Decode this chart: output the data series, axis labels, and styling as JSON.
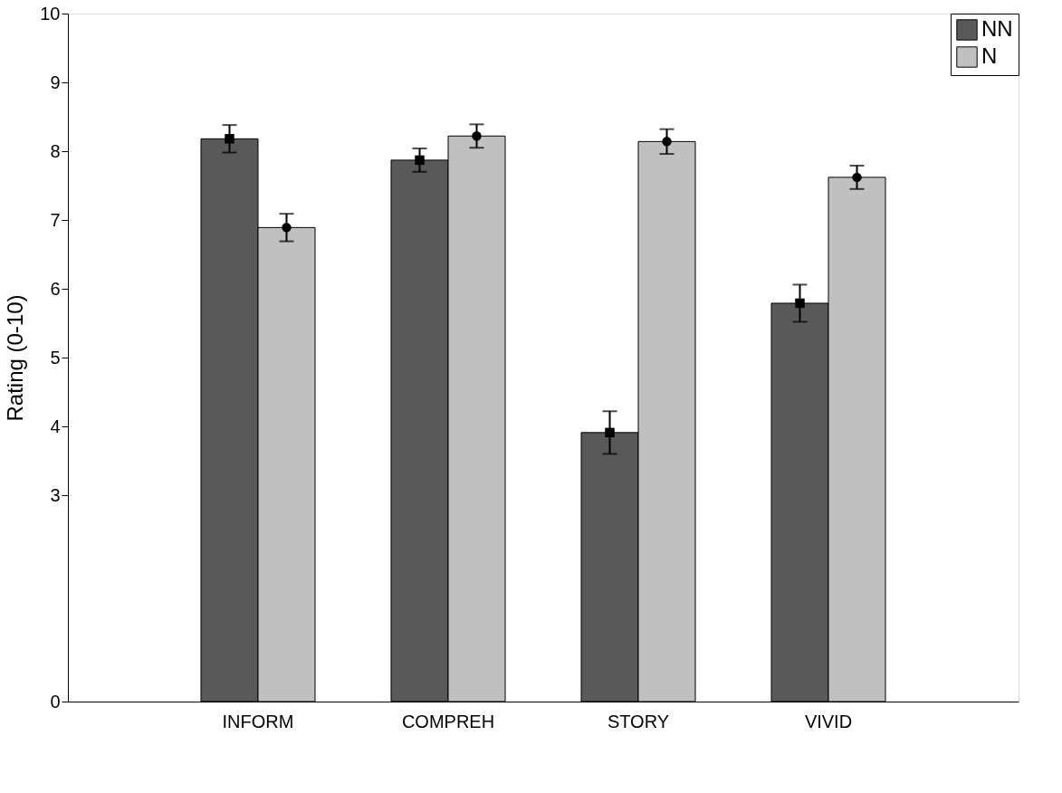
{
  "chart_data": {
    "type": "bar",
    "ylabel": "Rating (0-10)",
    "categories": [
      "INFORM",
      "COMPREH",
      "STORY",
      "VIVID"
    ],
    "series": [
      {
        "name": "NN",
        "color": "#595959",
        "values": [
          8.18,
          7.87,
          3.91,
          5.79
        ],
        "errors": [
          0.2,
          0.17,
          0.31,
          0.27
        ]
      },
      {
        "name": "N",
        "color": "#c0c0c0",
        "values": [
          6.89,
          8.22,
          8.14,
          7.62
        ],
        "errors": [
          0.2,
          0.17,
          0.18,
          0.17
        ]
      },
      {
        "type": "scatter",
        "color": "#000000",
        "marker": "square",
        "x": [
          "INFORM",
          "COMPREH",
          "STORY",
          "VIVID"
        ],
        "values": [
          8.18,
          7.87,
          3.91,
          5.79
        ]
      },
      {
        "type": "scatter",
        "color": "#000000",
        "marker": "circle",
        "x": [
          "INFORM",
          "COMPREH",
          "STORY",
          "VIVID"
        ],
        "values": [
          6.89,
          8.22,
          8.14,
          7.62
        ]
      }
    ],
    "ylim": [
      0,
      10
    ],
    "yticks": [
      0,
      3,
      4,
      5,
      6,
      7,
      8,
      9,
      10
    ],
    "grid": false,
    "legend": "top right"
  }
}
